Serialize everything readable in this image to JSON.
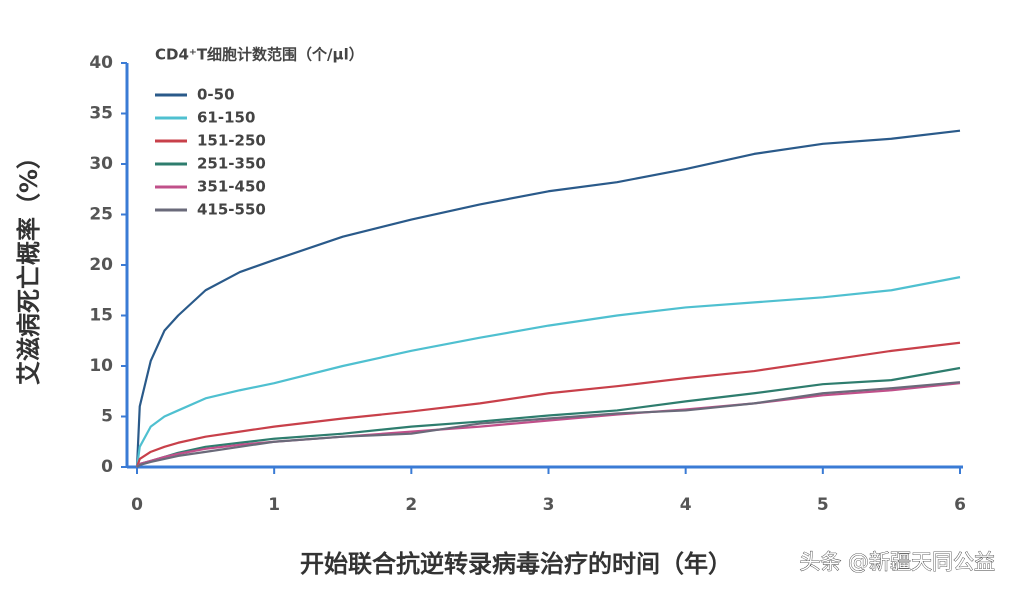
{
  "chart_data": {
    "type": "line",
    "legend_title": "CD4⁺T细胞计数范围（个/μl）",
    "y_label": "艾滋病死亡概率（%）",
    "x_label": "开始联合抗逆转录病毒治疗的时间（年）",
    "watermark": "头条 @新疆天同公益",
    "x": [
      0,
      0.02,
      0.1,
      0.2,
      0.3,
      0.5,
      0.75,
      1,
      1.5,
      2,
      2.5,
      3,
      3.5,
      4,
      4.5,
      5,
      5.5,
      6
    ],
    "series": [
      {
        "name": "0-50",
        "color": "#2a5a8a",
        "values": [
          0,
          6,
          10.5,
          13.5,
          15,
          17.5,
          19.3,
          20.5,
          22.8,
          24.5,
          26,
          27.3,
          28.2,
          29.5,
          31,
          32,
          32.5,
          33.3
        ]
      },
      {
        "name": "61-150",
        "color": "#4fc0d0",
        "values": [
          0,
          2,
          4,
          5,
          5.6,
          6.8,
          7.6,
          8.3,
          10,
          11.5,
          12.8,
          14,
          15,
          15.8,
          16.3,
          16.8,
          17.5,
          18.8
        ]
      },
      {
        "name": "151-250",
        "color": "#c8404a",
        "values": [
          0,
          0.8,
          1.5,
          2,
          2.4,
          3,
          3.5,
          4,
          4.8,
          5.5,
          6.3,
          7.3,
          8,
          8.8,
          9.5,
          10.5,
          11.5,
          12.3
        ]
      },
      {
        "name": "251-350",
        "color": "#2e7d6e",
        "values": [
          0,
          0.3,
          0.6,
          1,
          1.4,
          2,
          2.4,
          2.8,
          3.3,
          4,
          4.5,
          5.1,
          5.6,
          6.5,
          7.3,
          8.2,
          8.6,
          9.8
        ]
      },
      {
        "name": "351-450",
        "color": "#c0508a",
        "values": [
          0,
          0.3,
          0.6,
          1,
          1.3,
          1.8,
          2.2,
          2.5,
          3,
          3.5,
          4,
          4.6,
          5.2,
          5.7,
          6.3,
          7.1,
          7.6,
          8.3
        ]
      },
      {
        "name": "415-550",
        "color": "#6a6a7a",
        "values": [
          0,
          0.2,
          0.5,
          0.8,
          1.1,
          1.5,
          2,
          2.5,
          3,
          3.3,
          4.3,
          4.8,
          5.3,
          5.6,
          6.3,
          7.3,
          7.8,
          8.4
        ]
      }
    ],
    "xlim": [
      0,
      6
    ],
    "xticks": [
      0,
      1,
      2,
      3,
      4,
      5,
      6
    ],
    "ylim": [
      0,
      40
    ],
    "yticks": [
      0,
      5,
      10,
      15,
      20,
      25,
      30,
      35,
      40
    ]
  }
}
